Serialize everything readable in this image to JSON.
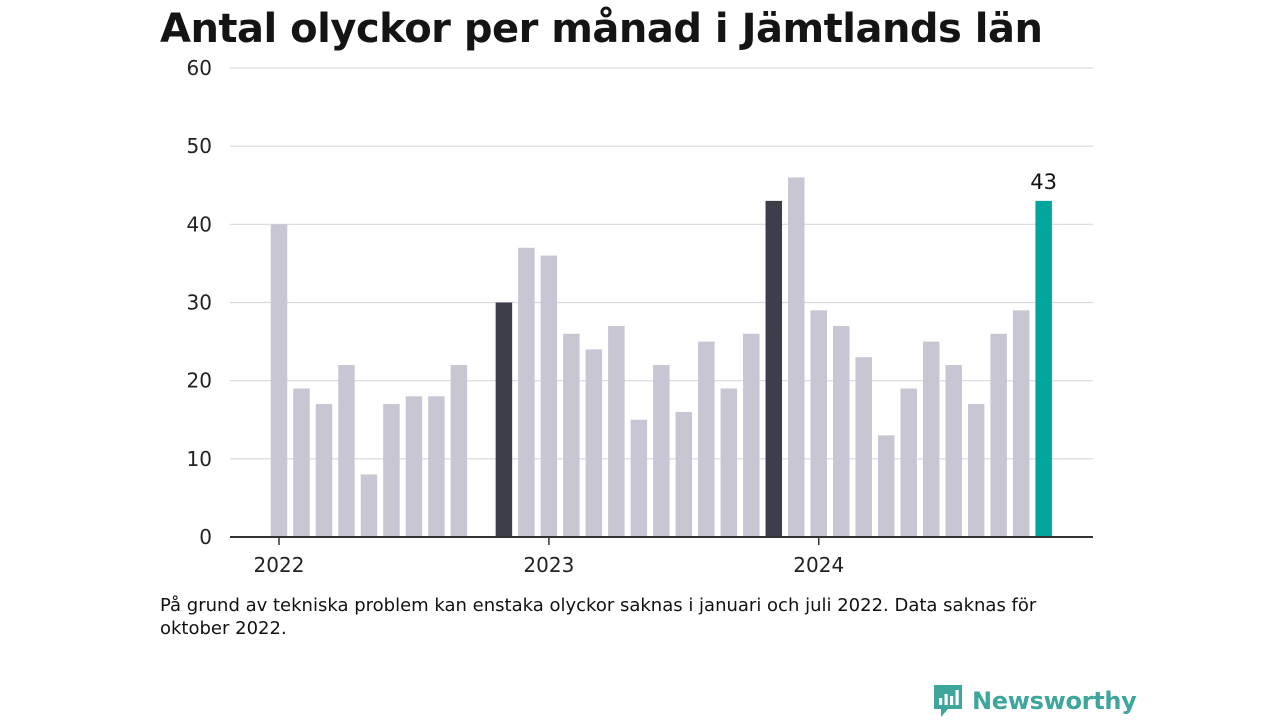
{
  "title": "Antal olyckor per månad i Jämtlands län",
  "footnote": "På grund av tekniska problem kan enstaka olyckor saknas i januari och juli 2022. Data saknas för oktober 2022.",
  "brand": {
    "name": "Newsworthy",
    "color": "#3fa69c"
  },
  "colors": {
    "default_bar": "#c8c6d2",
    "december_bar": "#3e3d4a",
    "latest_bar": "#00a59b",
    "gridline": "#d9d9d9",
    "baseline": "#333333"
  },
  "chart_data": {
    "type": "bar",
    "title": "Antal olyckor per månad i Jämtlands län",
    "xlabel": "",
    "ylabel": "",
    "ylim": [
      0,
      60
    ],
    "yticks": [
      0,
      10,
      20,
      30,
      40,
      50,
      60
    ],
    "grid": true,
    "x_tick_labels": [
      {
        "label": "2022",
        "month": "2022-01"
      },
      {
        "label": "2023",
        "month": "2023-01"
      },
      {
        "label": "2024",
        "month": "2024-01"
      }
    ],
    "annotations": [
      {
        "month": "2024-11",
        "text": "43"
      }
    ],
    "months": [
      "2022-01",
      "2022-02",
      "2022-03",
      "2022-04",
      "2022-05",
      "2022-06",
      "2022-07",
      "2022-08",
      "2022-09",
      "2022-10",
      "2022-11",
      "2022-12",
      "2023-01",
      "2023-02",
      "2023-03",
      "2023-04",
      "2023-05",
      "2023-06",
      "2023-07",
      "2023-08",
      "2023-09",
      "2023-10",
      "2023-11",
      "2023-12",
      "2024-01",
      "2024-02",
      "2024-03",
      "2024-04",
      "2024-05",
      "2024-06",
      "2024-07",
      "2024-08",
      "2024-09",
      "2024-10",
      "2024-11"
    ],
    "values": [
      40,
      19,
      17,
      22,
      8,
      17,
      18,
      18,
      22,
      null,
      30,
      37,
      36,
      26,
      24,
      27,
      15,
      22,
      16,
      25,
      19,
      26,
      43,
      46,
      29,
      27,
      23,
      13,
      19,
      25,
      22,
      17,
      26,
      29,
      43
    ],
    "highlight": {
      "december": [
        "2022-11",
        "2023-11"
      ],
      "latest": "2024-11"
    }
  }
}
